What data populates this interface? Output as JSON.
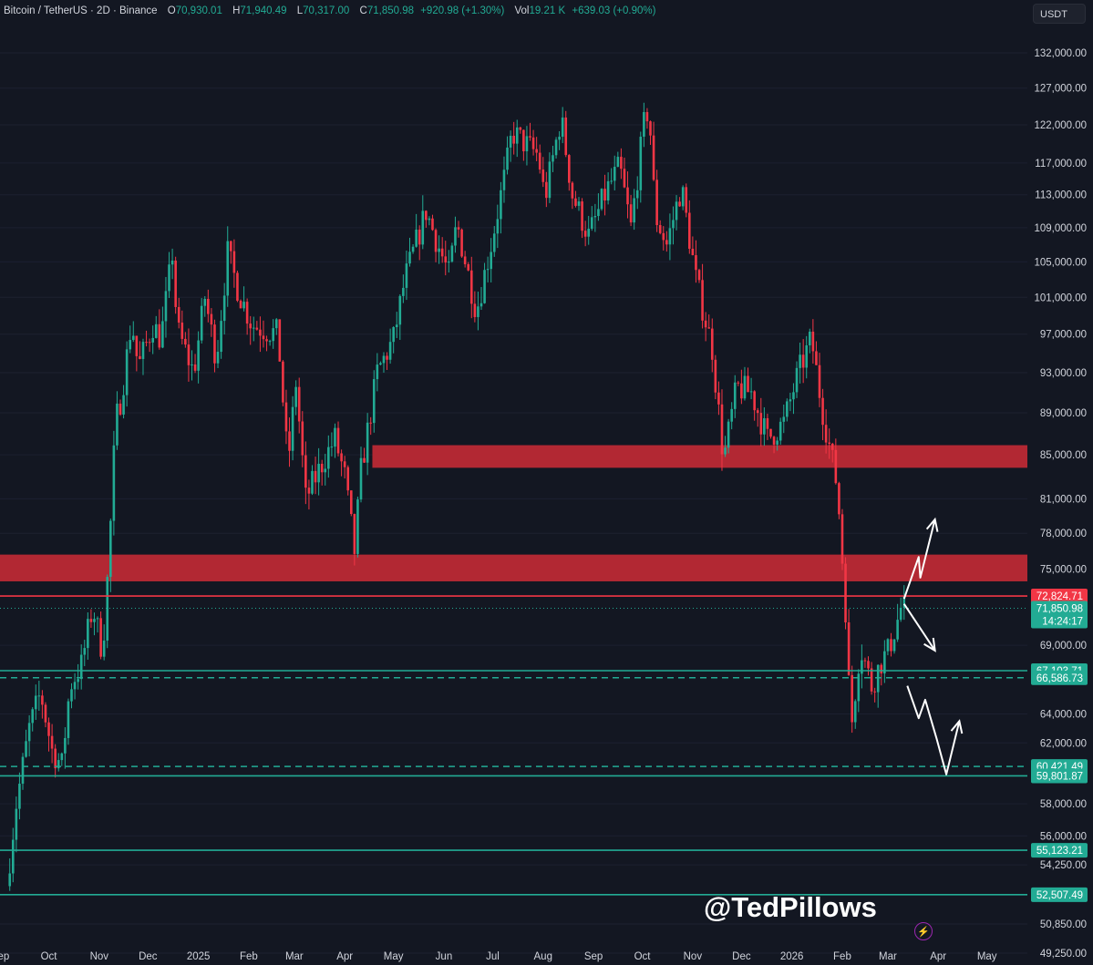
{
  "header": {
    "symbol": "Bitcoin / TetherUS · 2D · Binance",
    "o_label": "O",
    "o_value": "70,930.01",
    "h_label": "H",
    "h_value": "71,940.49",
    "l_label": "L",
    "l_value": "70,317.00",
    "c_label": "C",
    "c_value": "71,850.98",
    "change": "+920.98 (+1.30%)",
    "vol_label": "Vol",
    "vol_value": "19.21 K",
    "vol_change": "+639.03 (+0.90%)"
  },
  "currency_button": "USDT",
  "watermark": "@TedPillows",
  "colors": {
    "background": "#131722",
    "up": "#22ab94",
    "down": "#f23645",
    "zone": "#b22833",
    "resistance_line": "#f23645",
    "support_line": "#22ab94",
    "axis_text": "#d1d4dc"
  },
  "chart_data": {
    "type": "candlestick",
    "title": "Bitcoin / TetherUS · 2D · Binance",
    "y_scale": "log",
    "ylim": [
      48500,
      142000
    ],
    "x_range": [
      "2024-09-01",
      "2026-05-15"
    ],
    "y_ticks": [
      "132,000.00",
      "127,000.00",
      "122,000.00",
      "117,000.00",
      "113,000.00",
      "109,000.00",
      "105,000.00",
      "101,000.00",
      "97,000.00",
      "93,000.00",
      "89,000.00",
      "85,000.00",
      "81,000.00",
      "78,000.00",
      "75,000.00",
      "69,000.00",
      "64,000.00",
      "62,000.00",
      "58,000.00",
      "56,000.00",
      "54,250.00",
      "50,850.00",
      "49,250.00"
    ],
    "y_tick_values": [
      132000,
      127000,
      122000,
      117000,
      113000,
      109000,
      105000,
      101000,
      97000,
      93000,
      89000,
      85000,
      81000,
      78000,
      75000,
      69000,
      64000,
      62000,
      58000,
      56000,
      54250,
      50850,
      49250
    ],
    "x_ticks": [
      {
        "label": "Sep",
        "date": "2024-09-01"
      },
      {
        "label": "Oct",
        "date": "2024-10-01"
      },
      {
        "label": "Nov",
        "date": "2024-11-01"
      },
      {
        "label": "Dec",
        "date": "2024-12-01"
      },
      {
        "label": "2025",
        "date": "2025-01-01"
      },
      {
        "label": "Feb",
        "date": "2025-02-01"
      },
      {
        "label": "Mar",
        "date": "2025-03-01"
      },
      {
        "label": "Apr",
        "date": "2025-04-01"
      },
      {
        "label": "May",
        "date": "2025-05-01"
      },
      {
        "label": "Jun",
        "date": "2025-06-01"
      },
      {
        "label": "Jul",
        "date": "2025-07-01"
      },
      {
        "label": "Aug",
        "date": "2025-08-01"
      },
      {
        "label": "Sep",
        "date": "2025-09-01"
      },
      {
        "label": "Oct",
        "date": "2025-10-01"
      },
      {
        "label": "Nov",
        "date": "2025-11-01"
      },
      {
        "label": "Dec",
        "date": "2025-12-01"
      },
      {
        "label": "2026",
        "date": "2026-01-01"
      },
      {
        "label": "Feb",
        "date": "2026-02-01"
      },
      {
        "label": "Mar",
        "date": "2026-03-01"
      },
      {
        "label": "Apr",
        "date": "2026-04-01"
      },
      {
        "label": "May",
        "date": "2026-05-01"
      }
    ],
    "price_path": [
      [
        "2024-09-06",
        53000
      ],
      [
        "2024-09-12",
        58000
      ],
      [
        "2024-09-20",
        63000
      ],
      [
        "2024-09-27",
        65500
      ],
      [
        "2024-10-04",
        61500
      ],
      [
        "2024-10-10",
        60500
      ],
      [
        "2024-10-15",
        66000
      ],
      [
        "2024-10-22",
        67500
      ],
      [
        "2024-10-29",
        72000
      ],
      [
        "2024-11-04",
        68500
      ],
      [
        "2024-11-08",
        76000
      ],
      [
        "2024-11-12",
        88000
      ],
      [
        "2024-11-16",
        91000
      ],
      [
        "2024-11-22",
        98500
      ],
      [
        "2024-11-26",
        93500
      ],
      [
        "2024-12-05",
        98000
      ],
      [
        "2024-12-10",
        96500
      ],
      [
        "2024-12-17",
        106000
      ],
      [
        "2024-12-20",
        97500
      ],
      [
        "2024-12-30",
        93000
      ],
      [
        "2025-01-06",
        101000
      ],
      [
        "2025-01-13",
        94500
      ],
      [
        "2025-01-20",
        106000
      ],
      [
        "2025-01-27",
        101500
      ],
      [
        "2025-02-04",
        98000
      ],
      [
        "2025-02-20",
        97000
      ],
      [
        "2025-02-26",
        84000
      ],
      [
        "2025-03-03",
        92000
      ],
      [
        "2025-03-09",
        81000
      ],
      [
        "2025-03-20",
        84500
      ],
      [
        "2025-03-27",
        86500
      ],
      [
        "2025-04-02",
        83000
      ],
      [
        "2025-04-08",
        76500
      ],
      [
        "2025-04-12",
        83500
      ],
      [
        "2025-04-22",
        93000
      ],
      [
        "2025-05-02",
        96500
      ],
      [
        "2025-05-09",
        103000
      ],
      [
        "2025-05-22",
        111000
      ],
      [
        "2025-06-05",
        103500
      ],
      [
        "2025-06-10",
        109500
      ],
      [
        "2025-06-22",
        99500
      ],
      [
        "2025-07-01",
        107000
      ],
      [
        "2025-07-10",
        116000
      ],
      [
        "2025-07-14",
        121000
      ],
      [
        "2025-07-30",
        118000
      ],
      [
        "2025-08-03",
        112500
      ],
      [
        "2025-08-13",
        123000
      ],
      [
        "2025-08-20",
        113000
      ],
      [
        "2025-08-30",
        108000
      ],
      [
        "2025-09-10",
        113500
      ],
      [
        "2025-09-18",
        116500
      ],
      [
        "2025-09-25",
        109000
      ],
      [
        "2025-10-03",
        122000
      ],
      [
        "2025-10-06",
        124500
      ],
      [
        "2025-10-10",
        110500
      ],
      [
        "2025-10-17",
        107000
      ],
      [
        "2025-10-26",
        114000
      ],
      [
        "2025-11-04",
        103000
      ],
      [
        "2025-11-14",
        95500
      ],
      [
        "2025-11-21",
        84500
      ],
      [
        "2025-11-29",
        91500
      ],
      [
        "2025-12-08",
        91000
      ],
      [
        "2025-12-18",
        86500
      ],
      [
        "2025-12-28",
        88000
      ],
      [
        "2026-01-06",
        93000
      ],
      [
        "2026-01-14",
        96500
      ],
      [
        "2026-01-20",
        90000
      ],
      [
        "2026-01-30",
        82000
      ],
      [
        "2026-02-05",
        70000
      ],
      [
        "2026-02-07",
        62500
      ],
      [
        "2026-02-13",
        69000
      ],
      [
        "2026-02-20",
        66000
      ],
      [
        "2026-02-26",
        67800
      ],
      [
        "2026-03-02",
        68500
      ],
      [
        "2026-03-08",
        70930
      ],
      [
        "2026-03-10",
        71850.98
      ]
    ],
    "zones": [
      {
        "from": 83800,
        "to": 85900,
        "start": "2025-04-18"
      },
      {
        "from": 74000,
        "to": 76200,
        "start": "2024-09-01"
      }
    ],
    "levels": [
      {
        "price": 72824.71,
        "label": "72,824.71",
        "style": "solid",
        "color": "#f23645"
      },
      {
        "price": 67103.71,
        "label": "67,103.71",
        "style": "solid",
        "color": "#22ab94"
      },
      {
        "price": 66586.73,
        "label": "66,586.73",
        "style": "dashed",
        "color": "#22ab94"
      },
      {
        "price": 60421.49,
        "label": "60,421.49",
        "style": "dashed",
        "color": "#22ab94"
      },
      {
        "price": 59801.87,
        "label": "59,801.87",
        "style": "solid",
        "color": "#22ab94"
      },
      {
        "price": 55123.21,
        "label": "55,123.21",
        "style": "solid",
        "color": "#22ab94"
      },
      {
        "price": 52507.49,
        "label": "52,507.49",
        "style": "solid",
        "color": "#22ab94"
      }
    ],
    "last_price": {
      "price": 71850.98,
      "label": "71,850.98",
      "countdown": "14:24:17"
    },
    "scenario_arrows": [
      {
        "points": [
          [
            "2026-03-11",
            72600
          ],
          [
            "2026-03-20",
            76000
          ],
          [
            "2026-03-21",
            74300
          ],
          [
            "2026-03-30",
            79200
          ]
        ]
      },
      {
        "points": [
          [
            "2026-03-11",
            72200
          ],
          [
            "2026-03-30",
            68600
          ]
        ]
      },
      {
        "points": [
          [
            "2026-03-13",
            66000
          ],
          [
            "2026-03-20",
            63700
          ],
          [
            "2026-03-24",
            65000
          ],
          [
            "2026-03-31",
            62300
          ],
          [
            "2026-04-06",
            59900
          ],
          [
            "2026-04-14",
            63500
          ]
        ]
      }
    ]
  }
}
